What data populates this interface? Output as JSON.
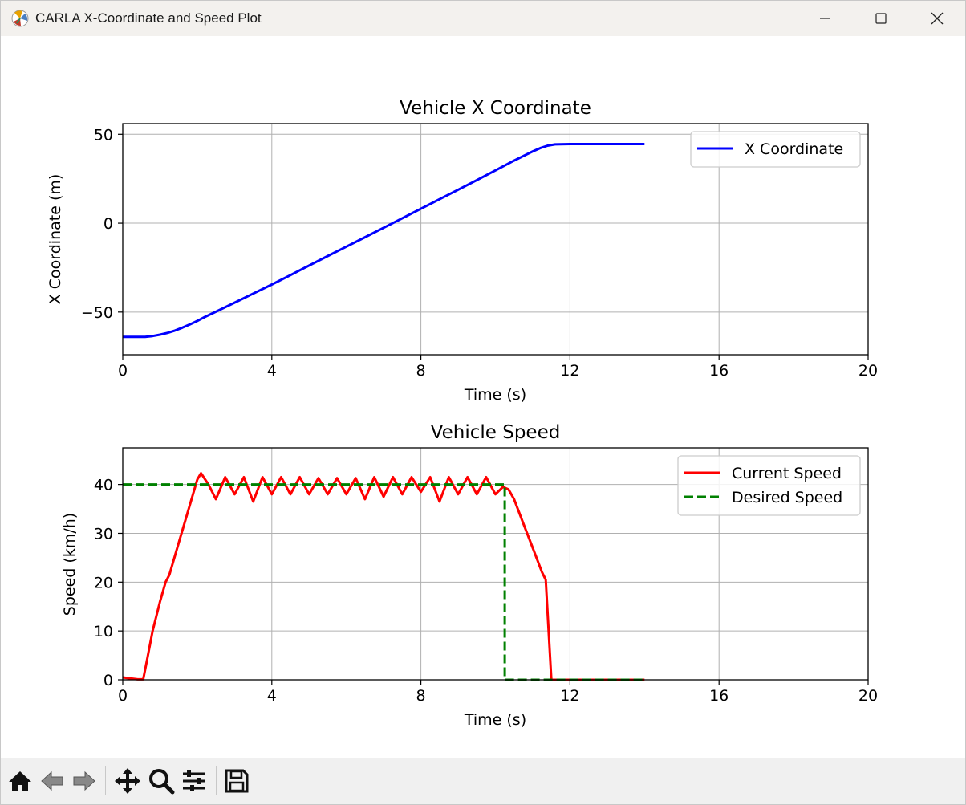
{
  "window": {
    "title": "CARLA X-Coordinate and Speed Plot"
  },
  "chart_data": [
    {
      "type": "line",
      "title": "Vehicle X Coordinate",
      "xlabel": "Time (s)",
      "ylabel": "X Coordinate (m)",
      "xlim": [
        0,
        20
      ],
      "ylim": [
        -74,
        56
      ],
      "xticks": [
        0,
        4,
        8,
        12,
        16,
        20
      ],
      "yticks": [
        -50,
        0,
        50
      ],
      "ytick_labels": [
        "−50",
        "0",
        "50"
      ],
      "grid": true,
      "legend_position": "top-right",
      "series": [
        {
          "name": "X Coordinate",
          "color": "#0000ff",
          "style": "solid",
          "x": [
            0,
            0.6,
            0.8,
            1.0,
            1.2,
            1.4,
            1.6,
            1.8,
            2.0,
            2.2,
            2.5,
            3.0,
            3.5,
            4.0,
            4.5,
            5.0,
            5.5,
            6.0,
            6.5,
            7.0,
            7.5,
            8.0,
            8.5,
            9.0,
            9.5,
            10.0,
            10.5,
            10.8,
            11.0,
            11.2,
            11.4,
            11.6,
            12.0,
            12.5,
            13.0,
            13.5,
            14.0
          ],
          "y": [
            -64,
            -64,
            -63.5,
            -62.7,
            -61.7,
            -60.4,
            -58.8,
            -57.0,
            -55.0,
            -52.8,
            -49.8,
            -44.7,
            -39.6,
            -34.5,
            -29.2,
            -23.8,
            -18.5,
            -13.2,
            -7.9,
            -2.6,
            2.8,
            8.1,
            13.5,
            18.8,
            24.2,
            29.7,
            35.2,
            38.3,
            40.4,
            42.2,
            43.6,
            44.3,
            44.5,
            44.5,
            44.5,
            44.5,
            44.5
          ]
        }
      ]
    },
    {
      "type": "line",
      "title": "Vehicle Speed",
      "xlabel": "Time (s)",
      "ylabel": "Speed (km/h)",
      "xlim": [
        0,
        20
      ],
      "ylim": [
        0,
        47.5
      ],
      "xticks": [
        0,
        4,
        8,
        12,
        16,
        20
      ],
      "yticks": [
        0,
        10,
        20,
        30,
        40
      ],
      "grid": true,
      "legend_position": "top-right",
      "series": [
        {
          "name": "Current Speed",
          "color": "#ff0000",
          "style": "solid",
          "x": [
            0,
            0.2,
            0.4,
            0.55,
            0.65,
            0.8,
            1.0,
            1.15,
            1.25,
            1.5,
            1.75,
            2.0,
            2.1,
            2.3,
            2.5,
            2.75,
            3.0,
            3.25,
            3.5,
            3.75,
            4.0,
            4.25,
            4.5,
            4.75,
            5.0,
            5.25,
            5.5,
            5.75,
            6.0,
            6.25,
            6.5,
            6.75,
            7.0,
            7.25,
            7.5,
            7.75,
            8.0,
            8.25,
            8.5,
            8.75,
            9.0,
            9.25,
            9.5,
            9.75,
            10.0,
            10.2,
            10.35,
            10.5,
            10.75,
            11.0,
            11.25,
            11.35,
            11.5,
            12.0,
            13.0,
            14.0
          ],
          "y": [
            0.5,
            0.3,
            0.1,
            0.1,
            4,
            10,
            16,
            20,
            21.5,
            28,
            34.5,
            41,
            42.3,
            40,
            37,
            41.5,
            38,
            41.5,
            36.5,
            41.5,
            38,
            41.5,
            38,
            41.5,
            38,
            41.3,
            38,
            41.3,
            38,
            41.3,
            37,
            41.5,
            37.5,
            41.5,
            38,
            41.5,
            38.5,
            41.5,
            36.5,
            41.5,
            38,
            41.5,
            38,
            41.5,
            38,
            39.5,
            39,
            37,
            32,
            27,
            22,
            20.5,
            0,
            0,
            0,
            0
          ]
        },
        {
          "name": "Desired Speed",
          "color": "#008000",
          "style": "dashed",
          "x": [
            0,
            10.25,
            10.25,
            14.0
          ],
          "y": [
            40,
            40,
            0,
            0
          ]
        }
      ]
    }
  ],
  "toolbar": {
    "buttons": [
      "home-icon",
      "back-icon",
      "forward-icon",
      "pan-icon",
      "zoom-icon",
      "configure-subplots-icon",
      "save-icon"
    ]
  }
}
